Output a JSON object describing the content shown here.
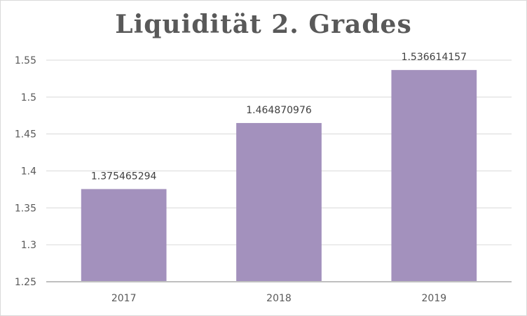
{
  "chart_data": {
    "type": "bar",
    "title": "Liquidität 2. Grades",
    "categories": [
      "2017",
      "2018",
      "2019"
    ],
    "values": [
      1.375465294,
      1.464870976,
      1.536614157
    ],
    "data_labels": [
      "1.375465294",
      "1.464870976",
      "1.536614157"
    ],
    "ylim": [
      1.25,
      1.55
    ],
    "yticks": [
      1.25,
      1.3,
      1.35,
      1.4,
      1.45,
      1.5,
      1.55
    ],
    "ytick_labels": [
      "1.25",
      "1.3",
      "1.35",
      "1.4",
      "1.45",
      "1.5",
      "1.55"
    ],
    "xlabel": "",
    "ylabel": "",
    "grid": true,
    "legend": "none",
    "bar_color": "#a391bd",
    "grid_color": "#d9d9d9",
    "axis_color": "#bfbfbf"
  }
}
